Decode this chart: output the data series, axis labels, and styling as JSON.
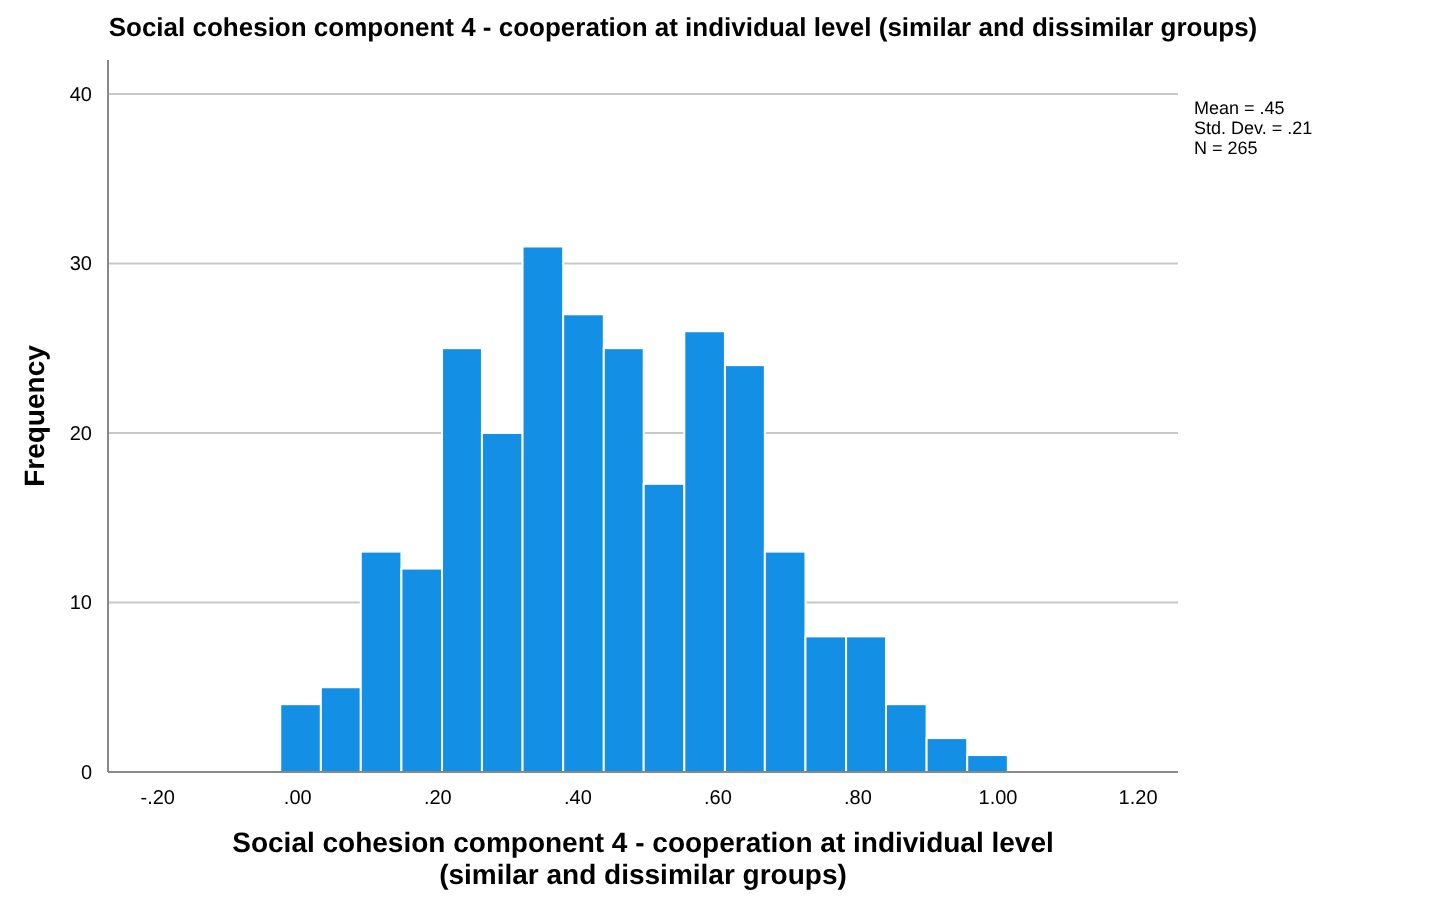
{
  "chart_data": {
    "type": "histogram",
    "title": "Social cohesion component 4 - cooperation at individual level (similar and dissimilar groups)",
    "xlabel": "Social cohesion component 4 - cooperation at individual level (similar and dissimilar groups)",
    "ylabel": "Frequency",
    "bins": [
      -0.025,
      0.033,
      0.09,
      0.148,
      0.206,
      0.263,
      0.321,
      0.379,
      0.437,
      0.494,
      0.552,
      0.61,
      0.667,
      0.725,
      0.783,
      0.84,
      0.898,
      0.956,
      1.014
    ],
    "values": [
      4,
      5,
      13,
      12,
      25,
      20,
      31,
      27,
      25,
      17,
      26,
      24,
      13,
      8,
      8,
      4,
      2,
      1
    ],
    "color": "#1390e6",
    "xlim": [
      -0.271,
      1.257
    ],
    "xticks": [
      {
        "value": -0.2,
        "label": "-.20"
      },
      {
        "value": 0,
        "label": ".00"
      },
      {
        "value": 0.2,
        "label": ".20"
      },
      {
        "value": 0.4,
        "label": ".40"
      },
      {
        "value": 0.6,
        "label": ".60"
      },
      {
        "value": 0.8,
        "label": ".80"
      },
      {
        "value": 1,
        "label": "1.00"
      },
      {
        "value": 1.2,
        "label": "1.20"
      }
    ],
    "ylim": [
      0,
      42
    ],
    "yticks": [
      0,
      10,
      20,
      30,
      40
    ],
    "grid": "y",
    "annotations": [
      "Mean = .45",
      "Std. Dev. = .21",
      "N = 265"
    ]
  }
}
